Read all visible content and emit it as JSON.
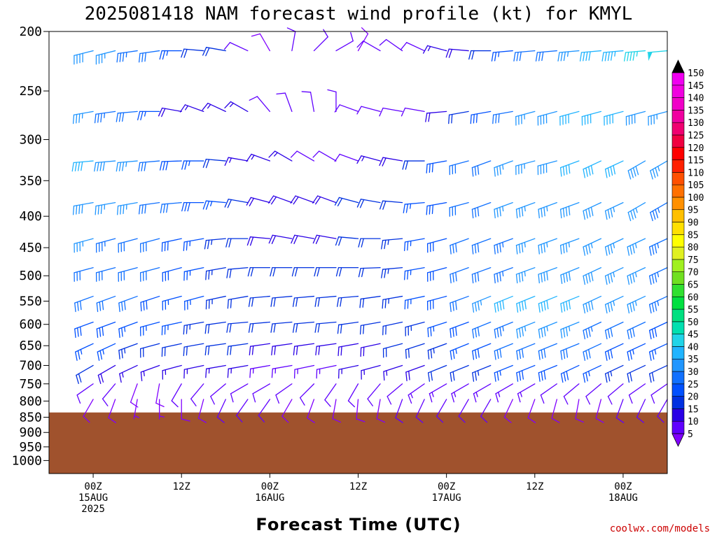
{
  "chart_data": {
    "type": "wind-barb-profile",
    "title": "2025081418 NAM forecast wind profile (kt) for KMYL",
    "xlabel": "Forecast Time (UTC)",
    "ylabel": "",
    "credit": "coolwx.com/models",
    "y_axis": {
      "scale": "pressure (hPa)",
      "ticks": [
        "200",
        "250",
        "300",
        "350",
        "400",
        "450",
        "500",
        "550",
        "600",
        "650",
        "700",
        "750",
        "800",
        "850",
        "900",
        "950",
        "1000"
      ],
      "range": [
        200,
        1050
      ],
      "inverted": true
    },
    "x_axis": {
      "ticks": [
        {
          "l1": "00Z",
          "l2": "15AUG",
          "l3": "2025"
        },
        {
          "l1": "12Z",
          "l2": "",
          "l3": ""
        },
        {
          "l1": "00Z",
          "l2": "16AUG",
          "l3": ""
        },
        {
          "l1": "12Z",
          "l2": "",
          "l3": ""
        },
        {
          "l1": "00Z",
          "l2": "17AUG",
          "l3": ""
        },
        {
          "l1": "12Z",
          "l2": "",
          "l3": ""
        },
        {
          "l1": "00Z",
          "l2": "18AUG",
          "l3": ""
        }
      ],
      "range_hours": [
        -6,
        78
      ]
    },
    "terrain": {
      "top_pressure": 835,
      "color": "#a0522d"
    },
    "colorbar": {
      "levels": [
        5,
        10,
        15,
        20,
        25,
        30,
        35,
        40,
        45,
        50,
        55,
        60,
        65,
        70,
        75,
        80,
        85,
        90,
        95,
        100,
        105,
        110,
        115,
        120,
        125,
        130,
        135,
        140,
        145,
        150
      ],
      "colors": [
        "#8000ff",
        "#6000ff",
        "#2a00e6",
        "#0030e0",
        "#0050ff",
        "#1070ff",
        "#2096ff",
        "#20b4ff",
        "#20d4e8",
        "#00e0b0",
        "#00e080",
        "#00e040",
        "#30e030",
        "#70e020",
        "#a0f020",
        "#e0f020",
        "#ffff00",
        "#ffe000",
        "#ffc000",
        "#ff9000",
        "#ff7000",
        "#ff5000",
        "#ff2000",
        "#ff0000",
        "#f00040",
        "#f00070",
        "#f000a0",
        "#f000c8",
        "#f000e0",
        "#f000f0"
      ],
      "colors_note": "speed colour scale"
    },
    "levels_hpa": [
      215,
      270,
      325,
      380,
      435,
      485,
      540,
      595,
      645,
      700,
      750,
      795
    ],
    "times_hours": [
      0,
      3,
      6,
      9,
      12,
      15,
      18,
      21,
      24,
      27,
      30,
      33,
      36,
      39,
      42,
      45,
      48,
      51,
      54,
      57,
      60,
      63,
      66,
      69,
      72,
      75,
      78
    ],
    "series": [
      {
        "p": 215,
        "dir": [
          256,
          256,
          262,
          262,
          270,
          275,
          280,
          295,
          330,
          10,
          45,
          60,
          30,
          300,
          305,
          295,
          285,
          275,
          270,
          265,
          265,
          265,
          265,
          265,
          265,
          265,
          265
        ],
        "spd": [
          38,
          36,
          33,
          30,
          25,
          22,
          20,
          10,
          8,
          10,
          12,
          10,
          8,
          10,
          12,
          12,
          15,
          18,
          22,
          25,
          30,
          32,
          36,
          40,
          44,
          45,
          48
        ]
      },
      {
        "p": 270,
        "dir": [
          260,
          262,
          265,
          270,
          280,
          290,
          295,
          300,
          320,
          340,
          350,
          0,
          290,
          285,
          280,
          280,
          265,
          260,
          260,
          260,
          255,
          255,
          255,
          255,
          255,
          255,
          255
        ],
        "spd": [
          35,
          34,
          30,
          25,
          18,
          15,
          15,
          15,
          12,
          10,
          10,
          10,
          10,
          10,
          10,
          12,
          18,
          22,
          28,
          32,
          35,
          38,
          40,
          42,
          40,
          38,
          35
        ]
      },
      {
        "p": 325,
        "dir": [
          265,
          265,
          265,
          265,
          268,
          270,
          275,
          280,
          290,
          300,
          300,
          300,
          290,
          285,
          280,
          270,
          260,
          255,
          250,
          250,
          255,
          255,
          250,
          245,
          245,
          240,
          240
        ],
        "spd": [
          40,
          38,
          35,
          30,
          28,
          25,
          20,
          15,
          15,
          15,
          12,
          12,
          12,
          15,
          18,
          22,
          28,
          30,
          32,
          35,
          35,
          38,
          40,
          42,
          40,
          38,
          35
        ]
      },
      {
        "p": 380,
        "dir": [
          260,
          260,
          260,
          262,
          265,
          270,
          275,
          280,
          285,
          290,
          290,
          290,
          285,
          280,
          275,
          265,
          260,
          255,
          250,
          250,
          250,
          250,
          250,
          245,
          245,
          240,
          240
        ],
        "spd": [
          38,
          36,
          35,
          32,
          30,
          28,
          25,
          20,
          18,
          18,
          18,
          18,
          20,
          20,
          22,
          25,
          28,
          30,
          32,
          35,
          35,
          35,
          38,
          38,
          36,
          35,
          34
        ]
      },
      {
        "p": 435,
        "dir": [
          255,
          255,
          255,
          255,
          258,
          260,
          265,
          270,
          275,
          280,
          280,
          280,
          275,
          270,
          265,
          260,
          255,
          250,
          250,
          250,
          250,
          250,
          250,
          245,
          245,
          245,
          245
        ],
        "spd": [
          35,
          34,
          32,
          30,
          28,
          26,
          24,
          20,
          18,
          18,
          18,
          18,
          20,
          22,
          24,
          26,
          28,
          30,
          32,
          34,
          35,
          36,
          36,
          36,
          35,
          35,
          34
        ]
      },
      {
        "p": 485,
        "dir": [
          255,
          255,
          255,
          255,
          255,
          258,
          260,
          265,
          270,
          270,
          270,
          270,
          270,
          268,
          265,
          260,
          255,
          250,
          250,
          250,
          250,
          250,
          248,
          245,
          245,
          245,
          245
        ],
        "spd": [
          32,
          32,
          30,
          30,
          28,
          26,
          24,
          22,
          20,
          20,
          20,
          20,
          20,
          22,
          24,
          26,
          28,
          30,
          32,
          34,
          36,
          38,
          38,
          38,
          36,
          35,
          34
        ]
      },
      {
        "p": 540,
        "dir": [
          250,
          250,
          250,
          252,
          255,
          255,
          258,
          260,
          265,
          265,
          265,
          265,
          265,
          262,
          260,
          258,
          255,
          250,
          248,
          248,
          248,
          248,
          248,
          245,
          245,
          245,
          245
        ],
        "spd": [
          30,
          30,
          30,
          28,
          26,
          25,
          24,
          22,
          20,
          20,
          20,
          20,
          20,
          22,
          24,
          26,
          28,
          32,
          36,
          40,
          42,
          42,
          40,
          38,
          36,
          35,
          34
        ]
      },
      {
        "p": 595,
        "dir": [
          250,
          250,
          250,
          255,
          258,
          260,
          262,
          265,
          265,
          265,
          265,
          265,
          262,
          260,
          258,
          255,
          252,
          250,
          248,
          248,
          248,
          248,
          248,
          245,
          245,
          245,
          245
        ],
        "spd": [
          28,
          28,
          26,
          26,
          25,
          24,
          22,
          22,
          20,
          20,
          20,
          20,
          20,
          20,
          22,
          24,
          26,
          28,
          32,
          34,
          36,
          36,
          36,
          34,
          32,
          30,
          28
        ]
      },
      {
        "p": 645,
        "dir": [
          245,
          245,
          250,
          255,
          258,
          260,
          262,
          262,
          262,
          262,
          262,
          262,
          260,
          258,
          255,
          252,
          250,
          248,
          248,
          248,
          248,
          248,
          248,
          245,
          245,
          245,
          245
        ],
        "spd": [
          25,
          25,
          24,
          22,
          22,
          20,
          20,
          20,
          18,
          18,
          18,
          18,
          18,
          18,
          20,
          22,
          24,
          26,
          28,
          30,
          32,
          32,
          32,
          30,
          28,
          26,
          25
        ]
      },
      {
        "p": 700,
        "dir": [
          240,
          240,
          245,
          250,
          255,
          258,
          260,
          260,
          260,
          260,
          258,
          258,
          258,
          255,
          252,
          250,
          248,
          248,
          248,
          248,
          248,
          248,
          245,
          245,
          245,
          245,
          245
        ],
        "spd": [
          20,
          18,
          16,
          15,
          15,
          15,
          15,
          15,
          14,
          14,
          14,
          14,
          15,
          15,
          16,
          18,
          20,
          22,
          24,
          26,
          28,
          28,
          28,
          26,
          24,
          22,
          20
        ]
      },
      {
        "p": 750,
        "dir": [
          235,
          220,
          200,
          190,
          210,
          220,
          230,
          240,
          240,
          235,
          225,
          215,
          210,
          220,
          230,
          235,
          240,
          240,
          240,
          240,
          240,
          235,
          230,
          230,
          230,
          235,
          235
        ],
        "spd": [
          10,
          10,
          8,
          8,
          10,
          12,
          12,
          12,
          12,
          10,
          10,
          10,
          10,
          12,
          12,
          14,
          14,
          14,
          14,
          14,
          14,
          12,
          12,
          12,
          12,
          12,
          12
        ]
      },
      {
        "p": 795,
        "dir": [
          210,
          200,
          190,
          180,
          180,
          195,
          205,
          215,
          215,
          210,
          200,
          190,
          185,
          190,
          200,
          205,
          210,
          210,
          210,
          205,
          200,
          195,
          190,
          195,
          200,
          205,
          210
        ],
        "spd": [
          8,
          8,
          6,
          6,
          8,
          8,
          10,
          10,
          10,
          8,
          8,
          8,
          8,
          8,
          10,
          10,
          10,
          10,
          10,
          8,
          8,
          8,
          8,
          8,
          10,
          10,
          10
        ]
      }
    ]
  }
}
